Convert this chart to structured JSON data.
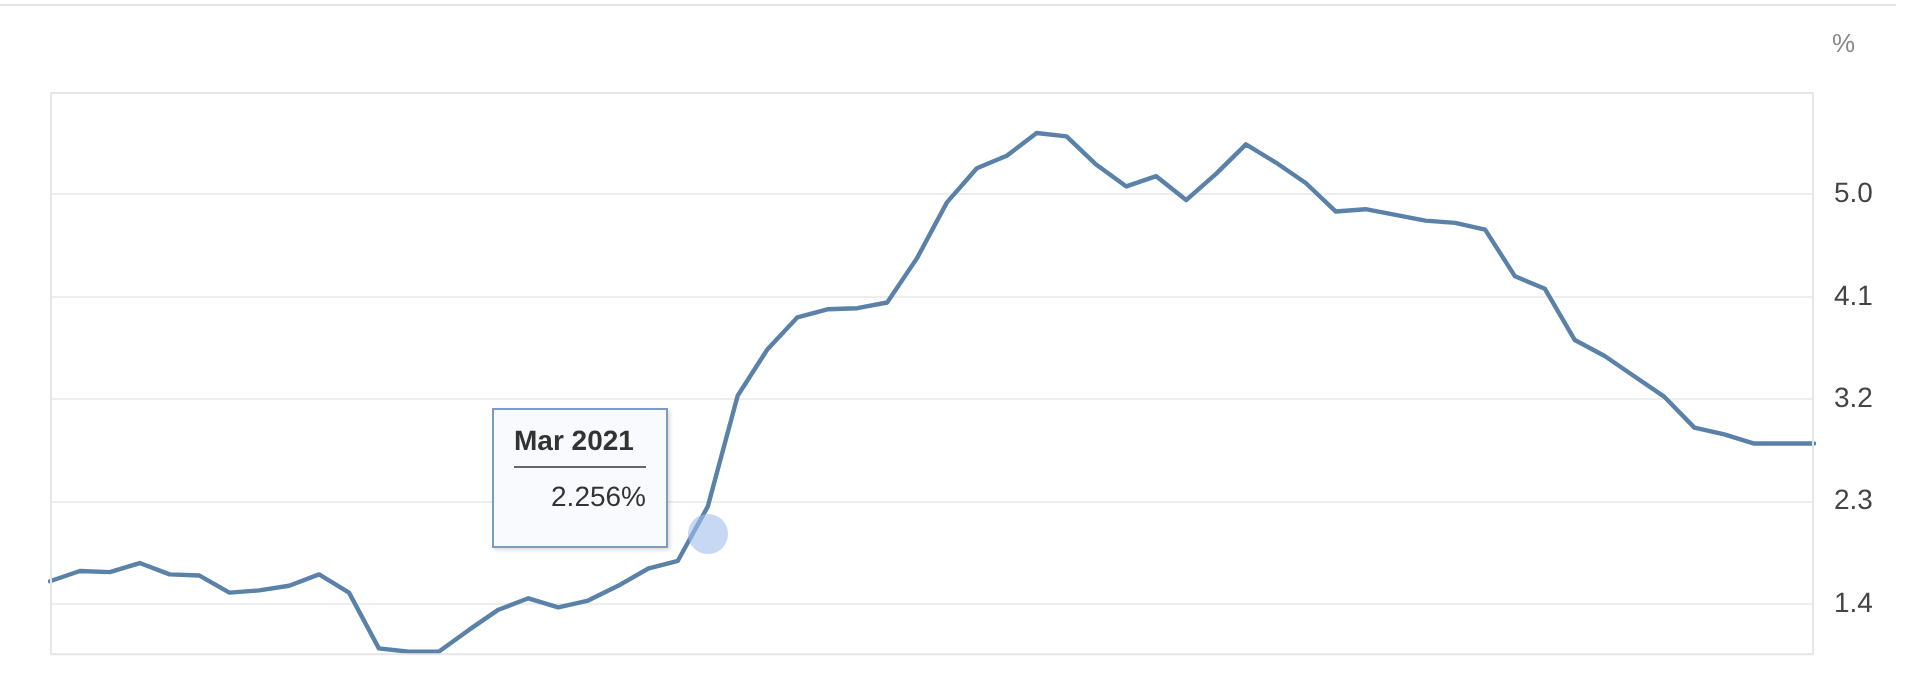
{
  "chart_data": {
    "type": "line",
    "ylabel": "%",
    "categories": [
      null,
      null,
      null,
      null,
      null,
      null,
      null,
      null,
      null,
      null,
      null,
      null,
      null,
      null,
      null,
      null,
      null,
      null,
      null,
      null,
      null,
      null,
      null,
      null,
      null,
      null,
      null,
      null,
      null,
      null,
      null,
      null,
      null,
      null,
      null,
      null,
      null,
      null,
      null,
      null,
      null,
      null,
      null,
      null,
      null,
      null,
      null,
      null,
      null,
      null,
      null,
      null,
      null,
      null,
      null,
      null,
      null,
      null,
      null,
      null
    ],
    "series": [
      {
        "color": "#5a82a8",
        "values": [
          1.6,
          1.69,
          1.68,
          1.76,
          1.66,
          1.65,
          1.5,
          1.52,
          1.56,
          1.66,
          1.5,
          1.01,
          0.98,
          0.98,
          1.17,
          1.35,
          1.45,
          1.37,
          1.43,
          1.56,
          1.71,
          1.78,
          2.256,
          3.23,
          3.64,
          3.92,
          3.99,
          4.0,
          4.05,
          4.44,
          4.93,
          5.23,
          5.34,
          5.54,
          5.51,
          5.26,
          5.07,
          5.16,
          4.95,
          5.18,
          5.44,
          5.28,
          5.1,
          4.85,
          4.87,
          4.82,
          4.77,
          4.75,
          4.69,
          4.28,
          4.17,
          3.72,
          3.58,
          3.4,
          3.22,
          2.95,
          2.89,
          2.81,
          2.81,
          2.81
        ]
      }
    ],
    "ylim": [
      0.95,
      5.9
    ],
    "yticks": [
      1.4,
      2.3,
      3.2,
      4.1,
      {
        "value": 5,
        "label": "5.0"
      }
    ],
    "tick_labels": "y",
    "grid": "y",
    "legend": false,
    "marker": "none",
    "line_style": "solid",
    "annotations": [
      "Mar 2021\n2.256%"
    ]
  }
}
